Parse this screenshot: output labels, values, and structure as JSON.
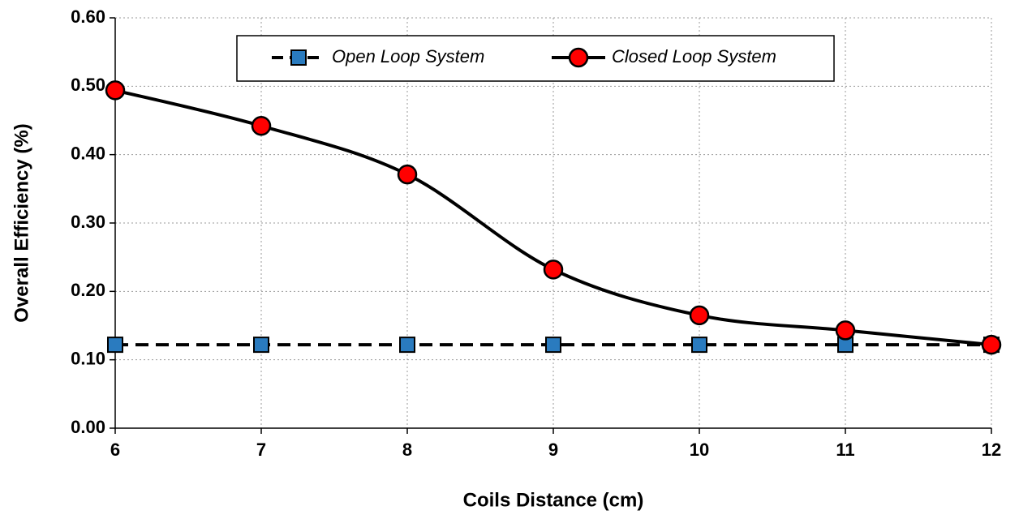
{
  "chart_data": {
    "type": "line",
    "xlabel": "Coils Distance (cm)",
    "ylabel": "Overall Efficiency (%)",
    "x": [
      6,
      7,
      8,
      9,
      10,
      11,
      12
    ],
    "series": [
      {
        "name": "Open Loop System",
        "color": "#2a7bbf",
        "marker": "square",
        "dashed": true,
        "values": [
          0.122,
          0.122,
          0.122,
          0.122,
          0.122,
          0.122,
          0.122
        ]
      },
      {
        "name": "Closed Loop System",
        "color": "#ff0000",
        "marker": "circle",
        "dashed": false,
        "smooth": true,
        "values": [
          0.494,
          0.442,
          0.371,
          0.232,
          0.165,
          0.143,
          0.122
        ]
      }
    ],
    "xlim": [
      6,
      12
    ],
    "xticks": [
      6,
      7,
      8,
      9,
      10,
      11,
      12
    ],
    "ylim": [
      0,
      0.6
    ],
    "yticks": [
      {
        "value": 0,
        "label": "0.00"
      },
      {
        "value": 0.1,
        "label": "0.10"
      },
      {
        "value": 0.2,
        "label": "0.20"
      },
      {
        "value": 0.3,
        "label": "0.30"
      },
      {
        "value": 0.4,
        "label": "0.40"
      },
      {
        "value": 0.5,
        "label": "0.50"
      },
      {
        "value": 0.6,
        "label": "0.60"
      }
    ],
    "grid": true,
    "legend": "top"
  }
}
